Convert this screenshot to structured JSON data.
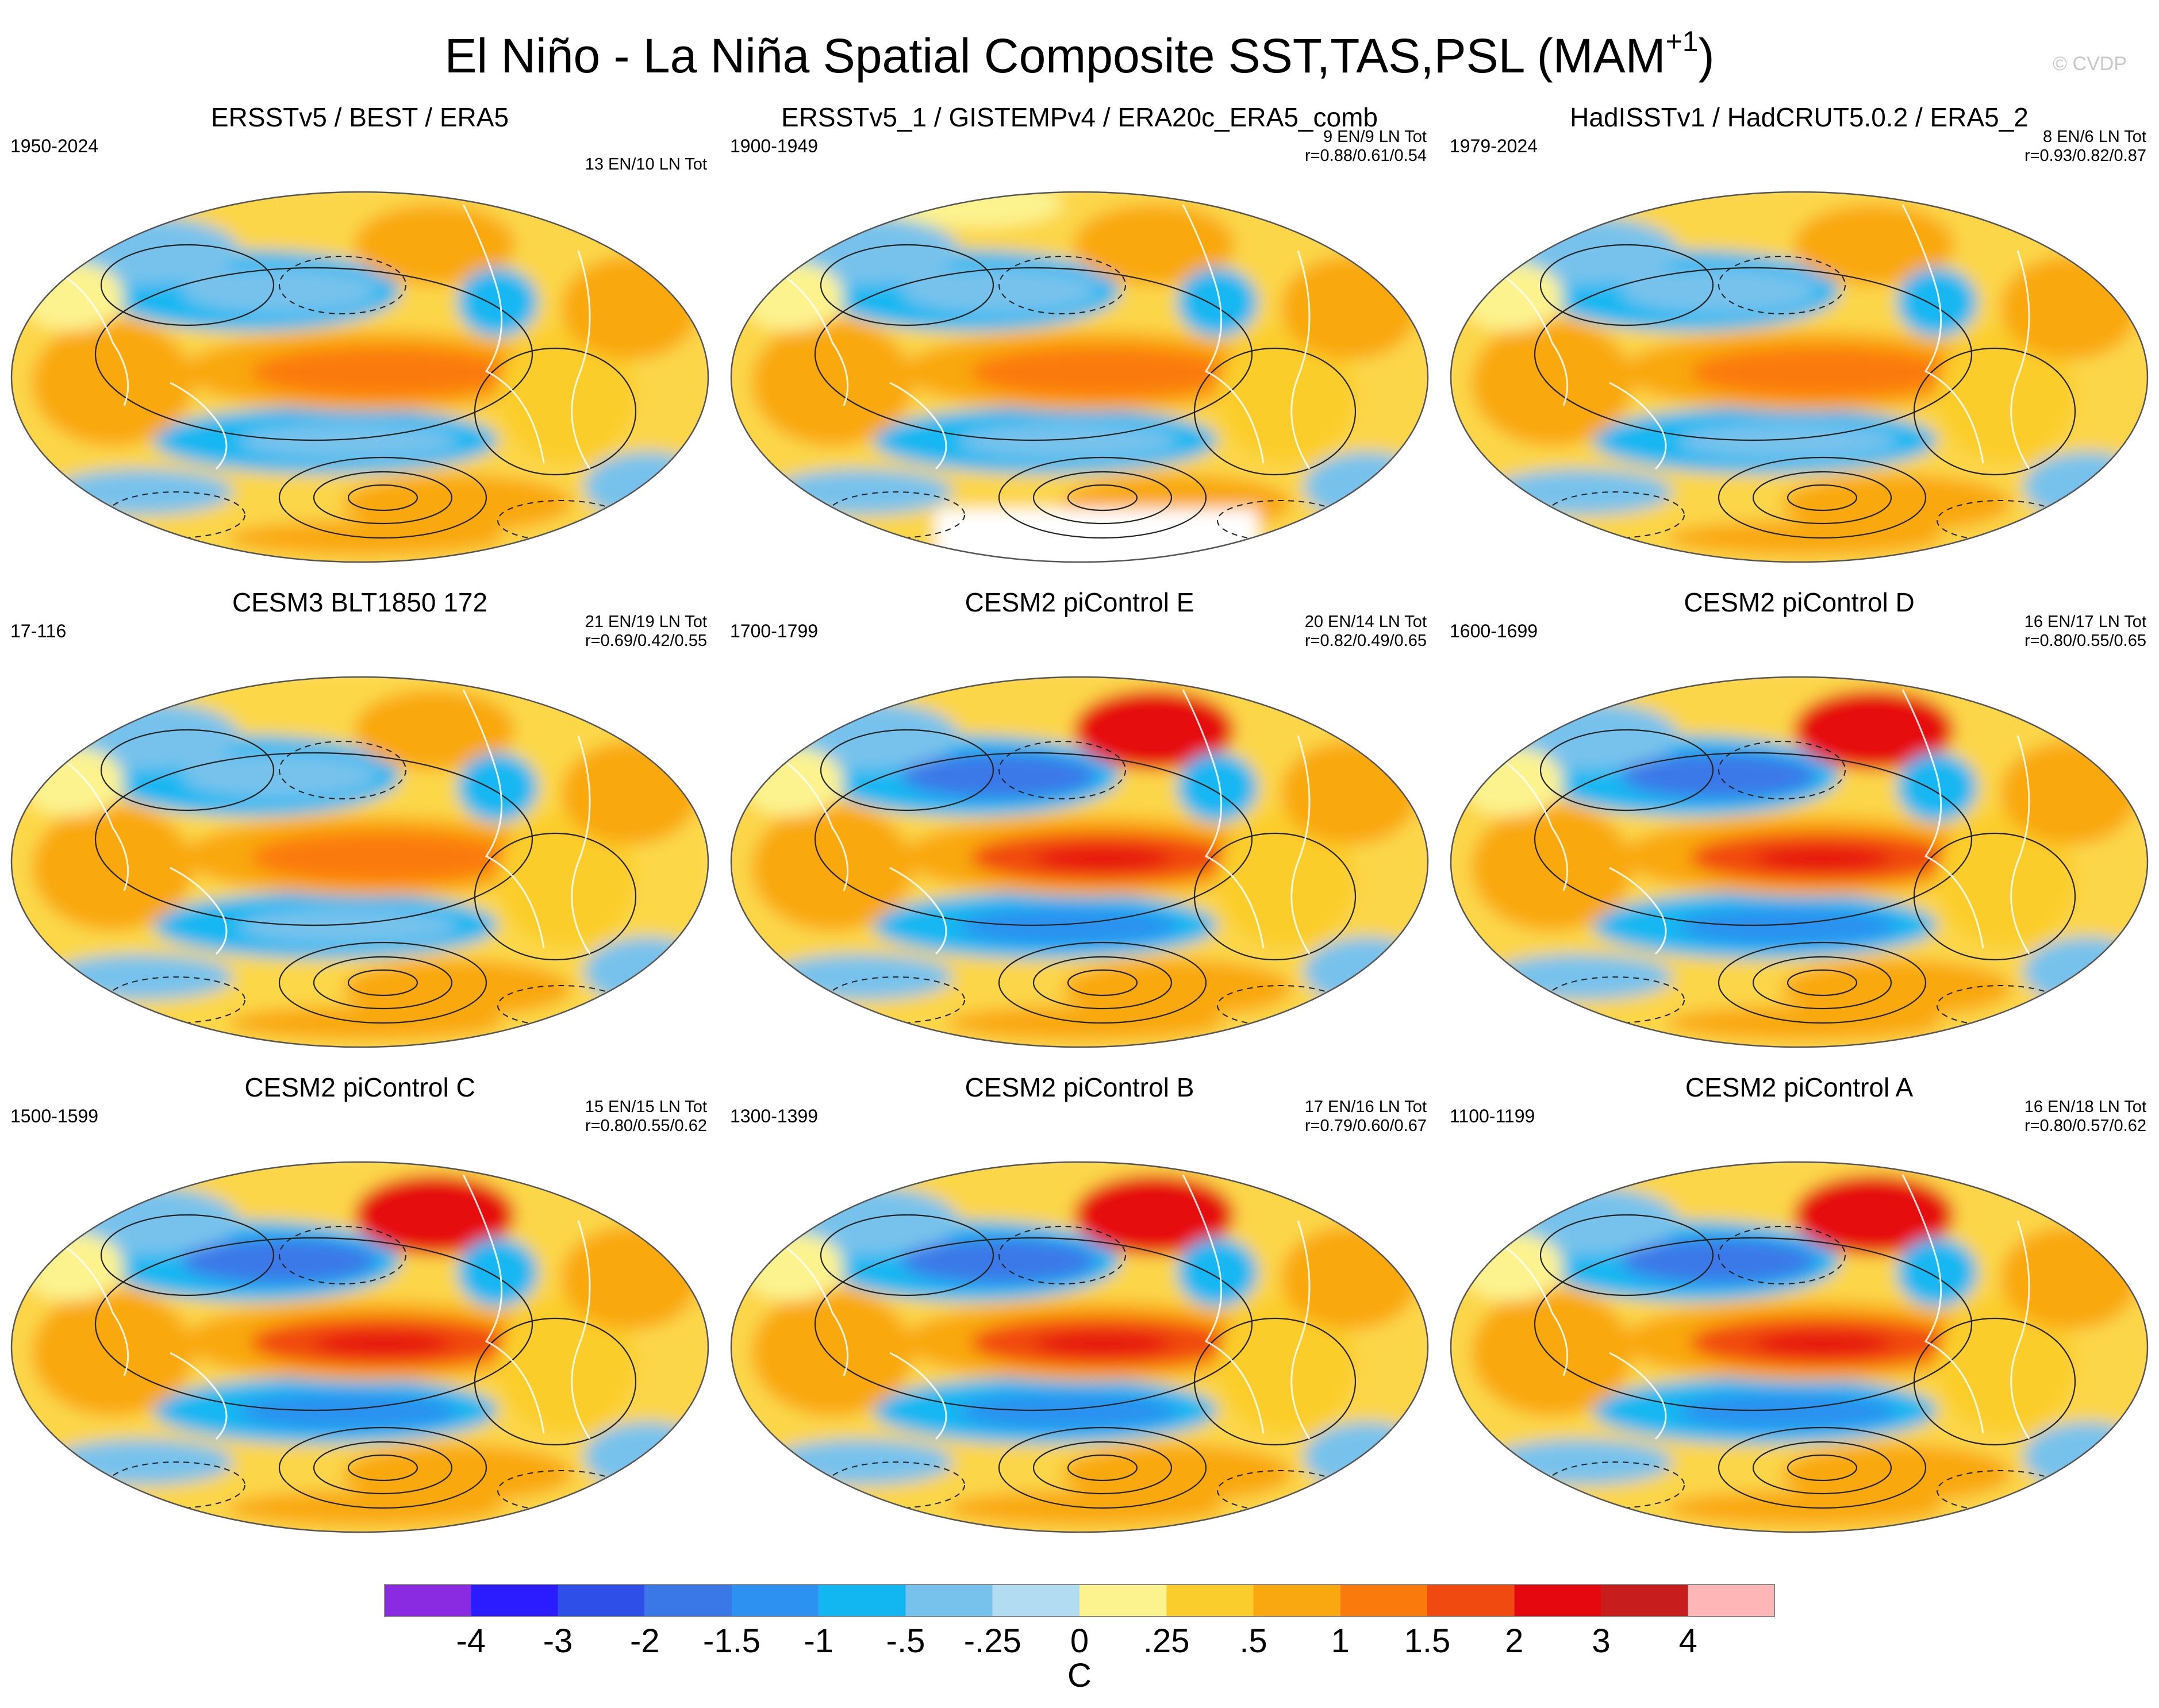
{
  "figure": {
    "title": "El Niño - La Niña Spatial Composite SST,TAS,PSL (MAM",
    "title_sup": "+1",
    "title_close": ")",
    "watermark": "© CVDP"
  },
  "panels": [
    {
      "title": "ERSSTv5 / BEST / ERA5",
      "period": "1950-2024",
      "counts": "13 EN/10 LN Tot",
      "corr": "",
      "style": 0,
      "scale": 0.7
    },
    {
      "title": "ERSSTv5_1 / GISTEMPv4 / ERA20c_ERA5_comb",
      "period": "1900-1949",
      "counts": "9 EN/9 LN Tot",
      "corr": "r=0.88/0.61/0.54",
      "style": 0,
      "scale": 0.65
    },
    {
      "title": "HadISSTv1 / HadCRUT5.0.2 / ERA5_2",
      "period": "1979-2024",
      "counts": "8 EN/6 LN Tot",
      "corr": "r=0.93/0.82/0.87",
      "style": 0,
      "scale": 0.8
    },
    {
      "title": "CESM3 BLT1850 172",
      "period": "17-116",
      "counts": "21 EN/19 LN Tot",
      "corr": "r=0.69/0.42/0.55",
      "style": 1,
      "scale": 0.55
    },
    {
      "title": "CESM2 piControl E",
      "period": "1700-1799",
      "counts": "20 EN/14 LN Tot",
      "corr": "r=0.82/0.49/0.65",
      "style": 2,
      "scale": 1.15
    },
    {
      "title": "CESM2 piControl D",
      "period": "1600-1699",
      "counts": "16 EN/17 LN Tot",
      "corr": "r=0.80/0.55/0.65",
      "style": 2,
      "scale": 1.1
    },
    {
      "title": "CESM2 piControl C",
      "period": "1500-1599",
      "counts": "15 EN/15 LN Tot",
      "corr": "r=0.80/0.55/0.62",
      "style": 2,
      "scale": 1.15
    },
    {
      "title": "CESM2 piControl B",
      "period": "1300-1399",
      "counts": "17 EN/16 LN Tot",
      "corr": "r=0.79/0.60/0.67",
      "style": 2,
      "scale": 1.1
    },
    {
      "title": "CESM2 piControl A",
      "period": "1100-1199",
      "counts": "16 EN/18 LN Tot",
      "corr": "r=0.80/0.57/0.62",
      "style": 2,
      "scale": 1.05
    }
  ],
  "colorbar": {
    "units": "C",
    "labels": [
      "-4",
      "-3",
      "-2",
      "-1.5",
      "-1",
      "-.5",
      "-.25",
      "0",
      ".25",
      ".5",
      "1",
      "1.5",
      "2",
      "3",
      "4"
    ],
    "colors": [
      "#8a2be2",
      "#2a1cff",
      "#2e4fe8",
      "#3a78e8",
      "#2c91f0",
      "#12b7f2",
      "#77c2ec",
      "#b2dcf2",
      "#fcf38f",
      "#fbcd2c",
      "#f9a80f",
      "#fb7a0c",
      "#f14a11",
      "#e5080f",
      "#c71d1d",
      "#ffb6b6"
    ]
  }
}
